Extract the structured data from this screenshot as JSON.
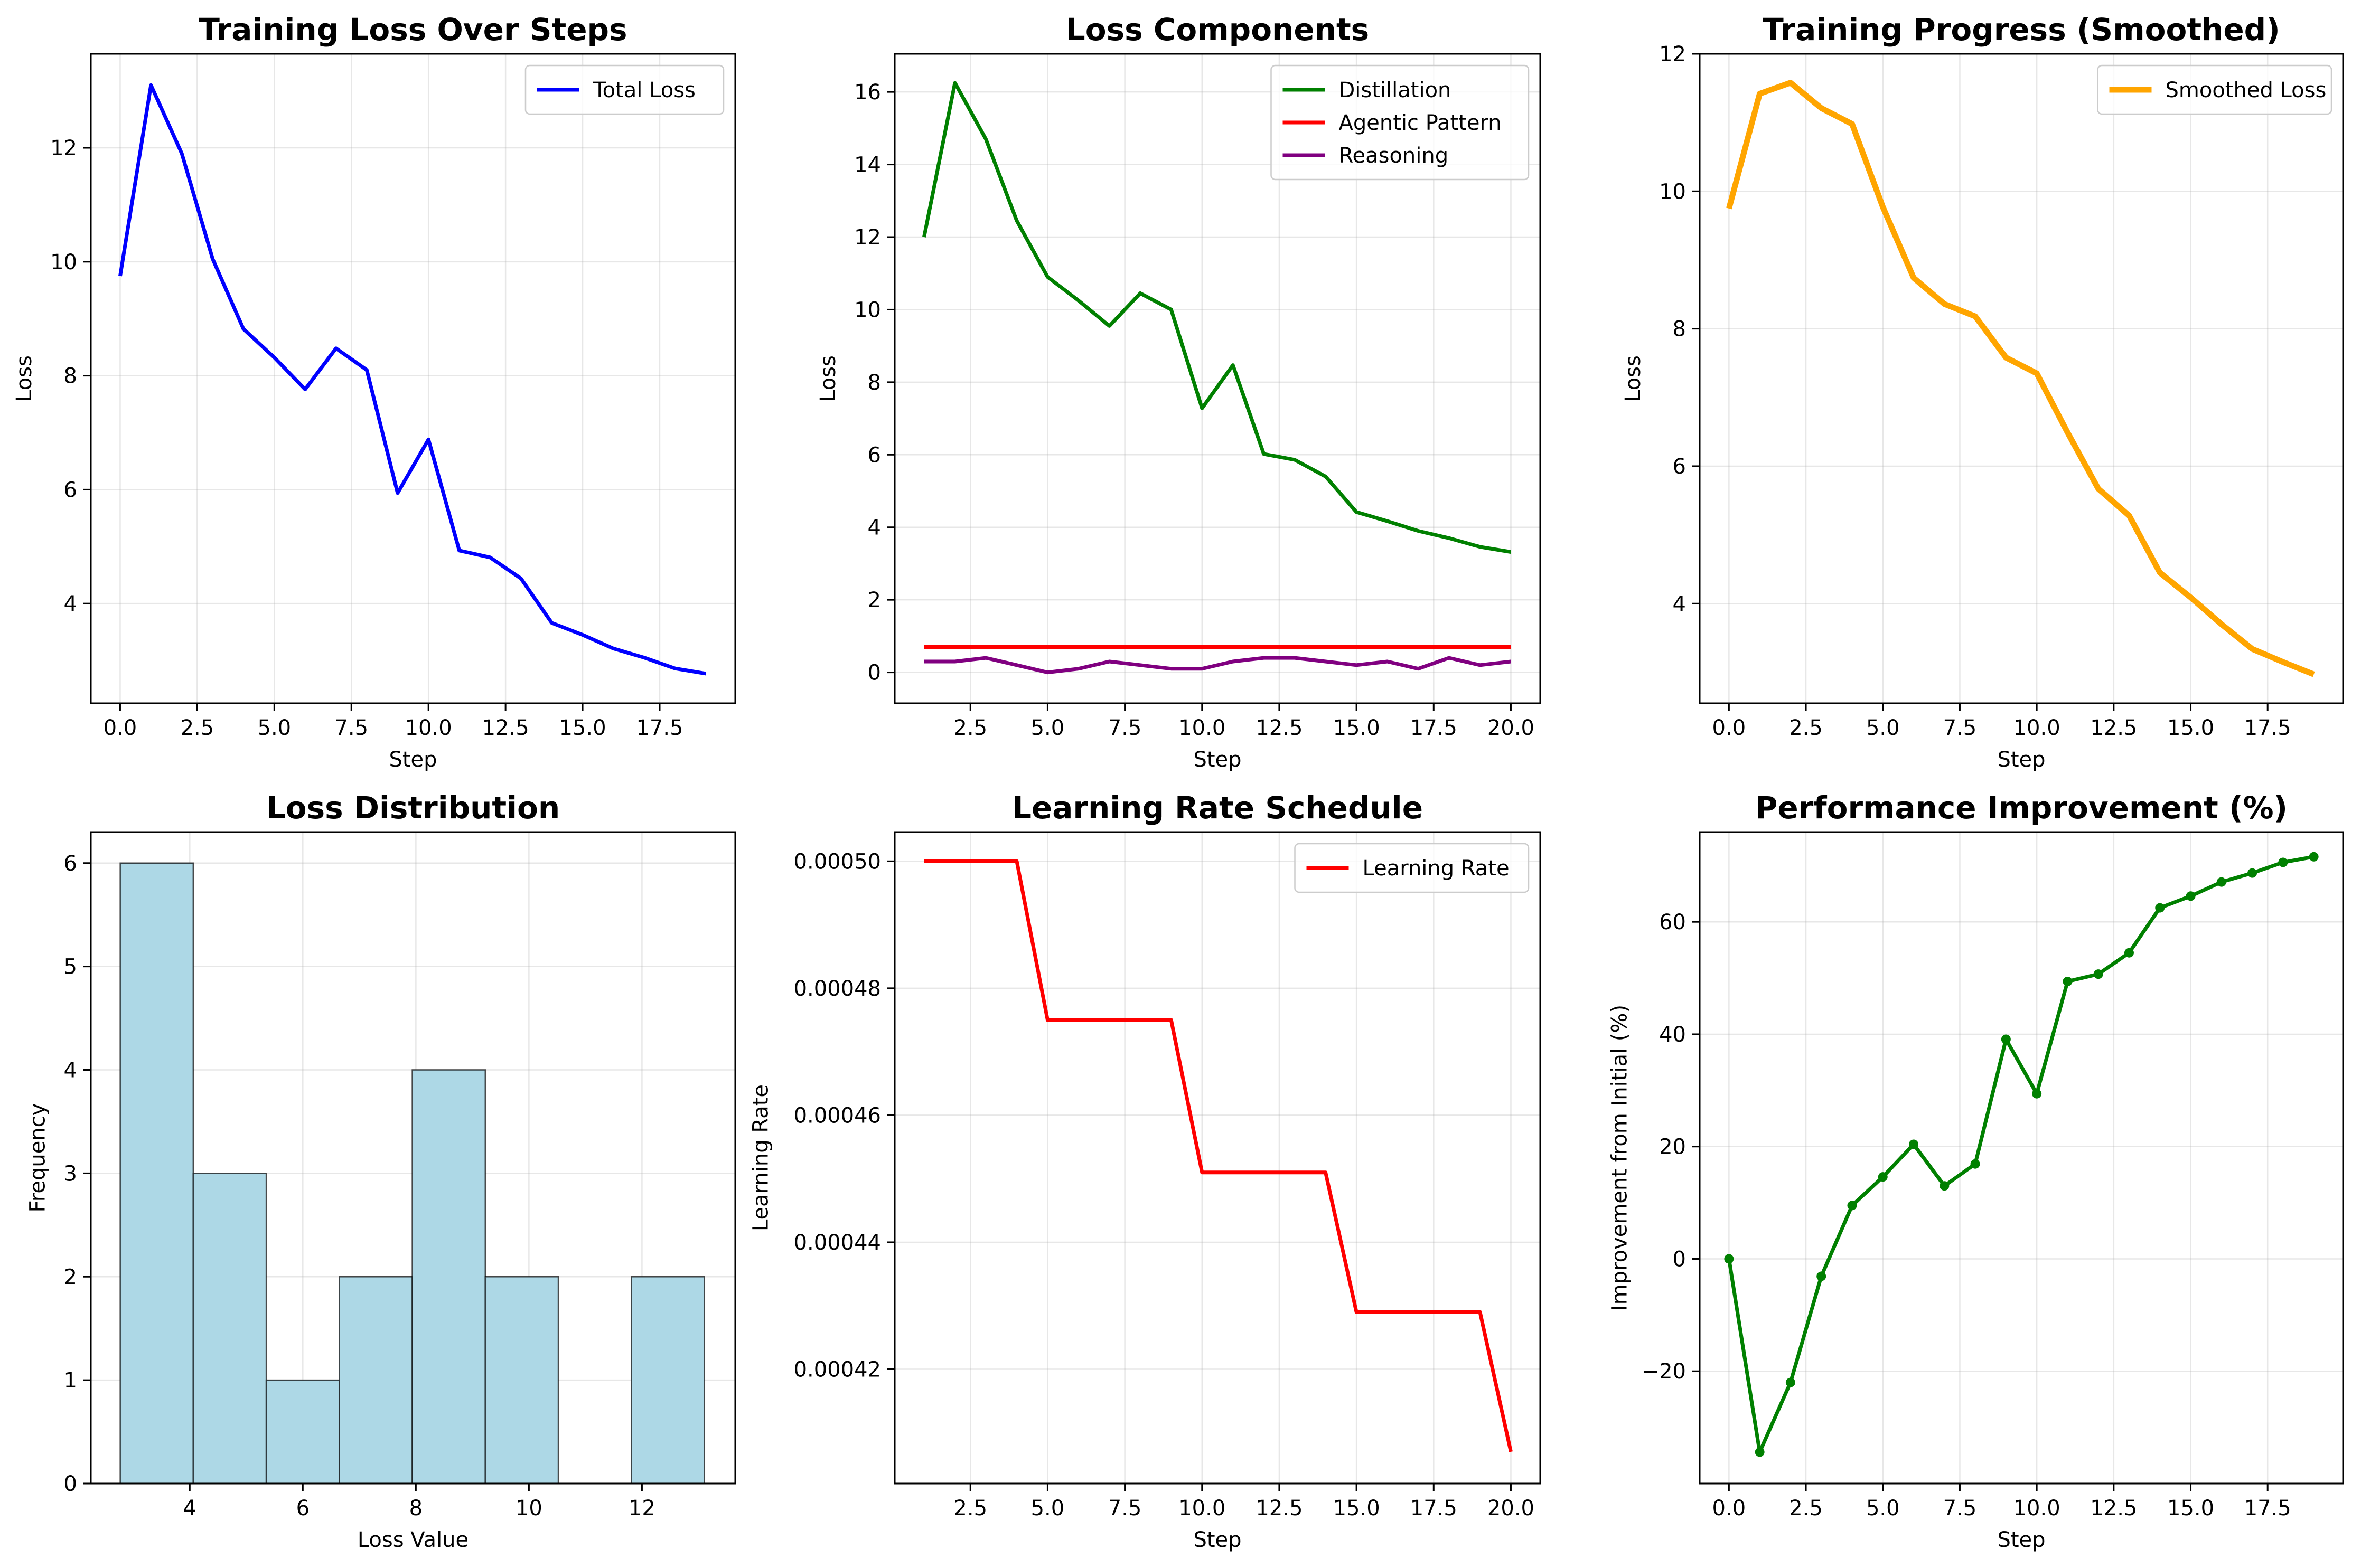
{
  "chart_data": [
    {
      "id": "total-loss",
      "type": "line",
      "title": "Training Loss Over Steps",
      "xlabel": "Step",
      "ylabel": "Loss",
      "xlim": [
        -0.95,
        19.95
      ],
      "ylim": [
        2.25,
        13.65
      ],
      "xticks": [
        0,
        2.5,
        5,
        7.5,
        10,
        12.5,
        15,
        17.5
      ],
      "xtick_labels": [
        "0.0",
        "2.5",
        "5.0",
        "7.5",
        "10.0",
        "12.5",
        "15.0",
        "17.5"
      ],
      "yticks": [
        4,
        6,
        8,
        10,
        12
      ],
      "ytick_labels": [
        "4",
        "6",
        "8",
        "10",
        "12"
      ],
      "grid": true,
      "legend": "upper-right",
      "series": [
        {
          "name": "Total Loss",
          "color": "#0000ff",
          "width": 7,
          "x": [
            0,
            1,
            2,
            3,
            4,
            5,
            6,
            7,
            8,
            9,
            10,
            11,
            12,
            13,
            14,
            15,
            16,
            17,
            18,
            19
          ],
          "y": [
            9.75,
            13.1,
            11.9,
            10.05,
            8.82,
            8.32,
            7.76,
            8.48,
            8.1,
            5.94,
            6.88,
            4.93,
            4.81,
            4.44,
            3.66,
            3.45,
            3.21,
            3.05,
            2.86,
            2.77
          ]
        }
      ]
    },
    {
      "id": "loss-components",
      "type": "line",
      "title": "Loss Components",
      "xlabel": "Step",
      "ylabel": "Loss",
      "xlim": [
        0.05,
        20.95
      ],
      "ylim": [
        -0.85,
        17.05
      ],
      "xticks": [
        2.5,
        5,
        7.5,
        10,
        12.5,
        15,
        17.5,
        20
      ],
      "xtick_labels": [
        "2.5",
        "5.0",
        "7.5",
        "10.0",
        "12.5",
        "15.0",
        "17.5",
        "20.0"
      ],
      "yticks": [
        0,
        2,
        4,
        6,
        8,
        10,
        12,
        14,
        16
      ],
      "ytick_labels": [
        "0",
        "2",
        "4",
        "6",
        "8",
        "10",
        "12",
        "14",
        "16"
      ],
      "grid": true,
      "legend": "upper-right",
      "series": [
        {
          "name": "Distillation",
          "color": "#008000",
          "width": 7,
          "x": [
            1,
            2,
            3,
            4,
            5,
            6,
            7,
            8,
            9,
            10,
            11,
            12,
            13,
            14,
            15,
            16,
            17,
            18,
            19,
            20
          ],
          "y": [
            12.0,
            16.25,
            14.7,
            12.45,
            10.9,
            10.25,
            9.55,
            10.45,
            10.0,
            7.28,
            8.47,
            6.02,
            5.86,
            5.4,
            4.42,
            4.17,
            3.9,
            3.7,
            3.46,
            3.32
          ]
        },
        {
          "name": "Agentic Pattern",
          "color": "#ff0000",
          "width": 7,
          "x": [
            1,
            2,
            3,
            4,
            5,
            6,
            7,
            8,
            9,
            10,
            11,
            12,
            13,
            14,
            15,
            16,
            17,
            18,
            19,
            20
          ],
          "y": [
            0.7,
            0.7,
            0.7,
            0.7,
            0.7,
            0.7,
            0.7,
            0.7,
            0.7,
            0.7,
            0.7,
            0.7,
            0.7,
            0.7,
            0.7,
            0.7,
            0.7,
            0.7,
            0.7,
            0.7
          ]
        },
        {
          "name": "Reasoning",
          "color": "#800080",
          "width": 7,
          "x": [
            1,
            2,
            3,
            4,
            5,
            6,
            7,
            8,
            9,
            10,
            11,
            12,
            13,
            14,
            15,
            16,
            17,
            18,
            19,
            20
          ],
          "y": [
            0.3,
            0.3,
            0.4,
            0.2,
            0.0,
            0.1,
            0.3,
            0.2,
            0.1,
            0.1,
            0.3,
            0.4,
            0.4,
            0.3,
            0.2,
            0.3,
            0.1,
            0.4,
            0.2,
            0.3
          ]
        }
      ]
    },
    {
      "id": "smoothed",
      "type": "line",
      "title": "Training Progress (Smoothed)",
      "xlabel": "Step",
      "ylabel": "Loss",
      "xlim": [
        -0.95,
        19.95
      ],
      "ylim": [
        2.55,
        12.0
      ],
      "xticks": [
        0,
        2.5,
        5,
        7.5,
        10,
        12.5,
        15,
        17.5
      ],
      "xtick_labels": [
        "0.0",
        "2.5",
        "5.0",
        "7.5",
        "10.0",
        "12.5",
        "15.0",
        "17.5"
      ],
      "yticks": [
        4,
        6,
        8,
        10,
        12
      ],
      "ytick_labels": [
        "4",
        "6",
        "8",
        "10",
        "12"
      ],
      "grid": true,
      "legend": "upper-right",
      "series": [
        {
          "name": "Smoothed Loss",
          "color": "#ffa500",
          "width": 11,
          "x": [
            0,
            1,
            2,
            3,
            4,
            5,
            6,
            7,
            8,
            9,
            10,
            11,
            12,
            13,
            14,
            15,
            16,
            17,
            18,
            19
          ],
          "y": [
            9.75,
            11.42,
            11.58,
            11.21,
            10.98,
            9.77,
            8.74,
            8.36,
            8.18,
            7.58,
            7.35,
            6.49,
            5.67,
            5.28,
            4.45,
            4.09,
            3.7,
            3.34,
            3.15,
            2.97
          ]
        }
      ]
    },
    {
      "id": "distribution",
      "type": "bar",
      "title": "Loss Distribution",
      "xlabel": "Loss Value",
      "ylabel": "Frequency",
      "xlim": [
        2.25,
        13.65
      ],
      "ylim": [
        0,
        6.3
      ],
      "xticks": [
        4,
        6,
        8,
        10,
        12
      ],
      "xtick_labels": [
        "4",
        "6",
        "8",
        "10",
        "12"
      ],
      "yticks": [
        0,
        1,
        2,
        3,
        4,
        5,
        6
      ],
      "ytick_labels": [
        "0",
        "1",
        "2",
        "3",
        "4",
        "5",
        "6"
      ],
      "grid": true,
      "bar_color": "#add8e6",
      "bins": [
        {
          "x0": 2.77,
          "x1": 4.0617,
          "value": 6
        },
        {
          "x0": 4.0617,
          "x1": 5.3534,
          "value": 3
        },
        {
          "x0": 5.3534,
          "x1": 6.6451,
          "value": 1
        },
        {
          "x0": 6.6451,
          "x1": 7.9368,
          "value": 2
        },
        {
          "x0": 7.9368,
          "x1": 9.2285,
          "value": 4
        },
        {
          "x0": 9.2285,
          "x1": 10.5202,
          "value": 2
        },
        {
          "x0": 10.5202,
          "x1": 11.8119,
          "value": 0
        },
        {
          "x0": 11.8119,
          "x1": 13.1036,
          "value": 2
        }
      ]
    },
    {
      "id": "learning-rate",
      "type": "line",
      "title": "Learning Rate Schedule",
      "xlabel": "Step",
      "ylabel": "Learning Rate",
      "xlim": [
        0.05,
        20.95
      ],
      "ylim": [
        0.000402,
        0.0005046
      ],
      "xticks": [
        2.5,
        5,
        7.5,
        10,
        12.5,
        15,
        17.5,
        20
      ],
      "xtick_labels": [
        "2.5",
        "5.0",
        "7.5",
        "10.0",
        "12.5",
        "15.0",
        "17.5",
        "20.0"
      ],
      "yticks": [
        0.00042,
        0.00044,
        0.00046,
        0.00048,
        0.0005
      ],
      "ytick_labels": [
        "0.00042",
        "0.00044",
        "0.00046",
        "0.00048",
        "0.00050"
      ],
      "grid": true,
      "legend": "upper-right",
      "series": [
        {
          "name": "Learning Rate",
          "color": "#ff0000",
          "width": 7,
          "x": [
            1,
            2,
            3,
            4,
            5,
            6,
            7,
            8,
            9,
            10,
            11,
            12,
            13,
            14,
            15,
            16,
            17,
            18,
            19,
            20
          ],
          "y": [
            0.0005,
            0.0005,
            0.0005,
            0.0005,
            0.000475,
            0.000475,
            0.000475,
            0.000475,
            0.000475,
            0.000451,
            0.000451,
            0.000451,
            0.000451,
            0.000451,
            0.000429,
            0.000429,
            0.000429,
            0.000429,
            0.000429,
            0.000407
          ]
        }
      ]
    },
    {
      "id": "improvement",
      "type": "line",
      "title": "Performance Improvement (%)",
      "xlabel": "Step",
      "ylabel": "Improvement from Initial (%)",
      "xlim": [
        -0.95,
        19.95
      ],
      "ylim": [
        -40,
        76
      ],
      "xticks": [
        0,
        2.5,
        5,
        7.5,
        10,
        12.5,
        15,
        17.5
      ],
      "xtick_labels": [
        "0.0",
        "2.5",
        "5.0",
        "7.5",
        "10.0",
        "12.5",
        "15.0",
        "17.5"
      ],
      "yticks": [
        -20,
        0,
        20,
        40,
        60
      ],
      "ytick_labels": [
        "−20",
        "0",
        "20",
        "40",
        "60"
      ],
      "grid": true,
      "series": [
        {
          "color": "#008000",
          "width": 7,
          "markers": true,
          "x": [
            0,
            1,
            2,
            3,
            4,
            5,
            6,
            7,
            8,
            9,
            10,
            11,
            12,
            13,
            14,
            15,
            16,
            17,
            18,
            19
          ],
          "y": [
            0,
            -34.4,
            -22.0,
            -3.1,
            9.5,
            14.6,
            20.4,
            13.0,
            16.9,
            39.1,
            29.4,
            49.4,
            50.7,
            54.5,
            62.5,
            64.6,
            67.1,
            68.7,
            70.6,
            71.6
          ]
        }
      ]
    }
  ]
}
